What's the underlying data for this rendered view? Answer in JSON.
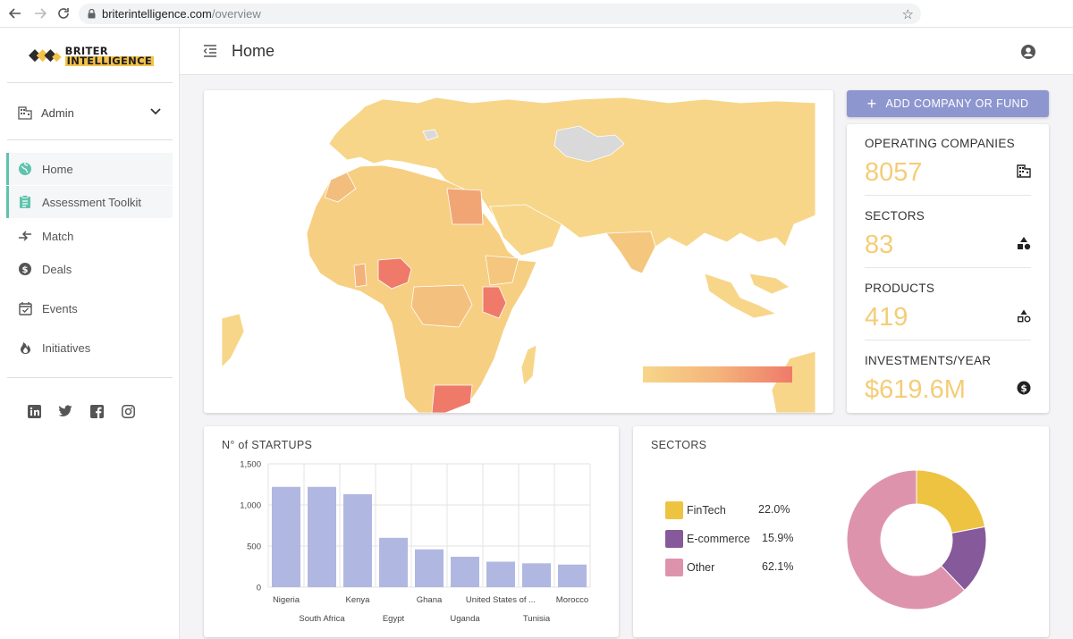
{
  "browser": {
    "url_host": "briterintelligence.com",
    "url_path": "/overview"
  },
  "sidebar": {
    "logo_line1": "BRITER",
    "logo_line2": "INTELLIGENCE",
    "admin_label": "Admin",
    "items": [
      {
        "label": "Home",
        "icon": "globe-icon",
        "active": true
      },
      {
        "label": "Assessment Toolkit",
        "icon": "clipboard-icon",
        "active": false
      },
      {
        "label": "Match",
        "icon": "arrows-icon",
        "active": false
      },
      {
        "label": "Deals",
        "icon": "dollar-circle-icon",
        "active": false
      },
      {
        "label": "Events",
        "icon": "calendar-check-icon",
        "active": false
      },
      {
        "label": "Initiatives",
        "icon": "flame-icon",
        "active": false
      }
    ],
    "socials": [
      "linkedin-icon",
      "twitter-icon",
      "facebook-icon",
      "instagram-icon"
    ]
  },
  "header": {
    "title": "Home"
  },
  "actions": {
    "add_label": "ADD COMPANY OR FUND"
  },
  "stats": [
    {
      "label": "OPERATING COMPANIES",
      "value": "8057",
      "icon": "building-icon"
    },
    {
      "label": "SECTORS",
      "value": "83",
      "icon": "shapes-filled-icon"
    },
    {
      "label": "PRODUCTS",
      "value": "419",
      "icon": "shapes-outline-icon"
    },
    {
      "label": "INVESTMENTS/YEAR",
      "value": "$619.6M",
      "icon": "dollar-circle-icon"
    }
  ],
  "colors": {
    "accent": "#5fc3ae",
    "button": "#8e96cf",
    "stat_value": "#f4cd78",
    "bar": "#b0b8e2",
    "map_low": "#f7d68a",
    "map_high": "#ef7a6a"
  },
  "startups": {
    "title": "N° of STARTUPS"
  },
  "sectors": {
    "title": "SECTORS"
  },
  "chart_data": [
    {
      "type": "bar",
      "title": "N° of STARTUPS",
      "categories": [
        "Nigeria",
        "South Africa",
        "Kenya",
        "Egypt",
        "Ghana",
        "Uganda",
        "United States of ...",
        "Tunisia",
        "Morocco"
      ],
      "values": [
        1220,
        1220,
        1130,
        600,
        460,
        370,
        310,
        290,
        275
      ],
      "yticks": [
        "0",
        "500",
        "1,000",
        "1,500"
      ],
      "ylim": [
        0,
        1500
      ],
      "grid": true
    },
    {
      "type": "pie",
      "title": "SECTORS",
      "labels": [
        "FinTech",
        "E-commerce",
        "Other"
      ],
      "values": [
        22.0,
        15.9,
        62.1
      ],
      "display": [
        "22.0%",
        "15.9%",
        "62.1%"
      ],
      "colors": [
        "#eec341",
        "#85599a",
        "#de93ad"
      ],
      "legend": "left"
    }
  ]
}
